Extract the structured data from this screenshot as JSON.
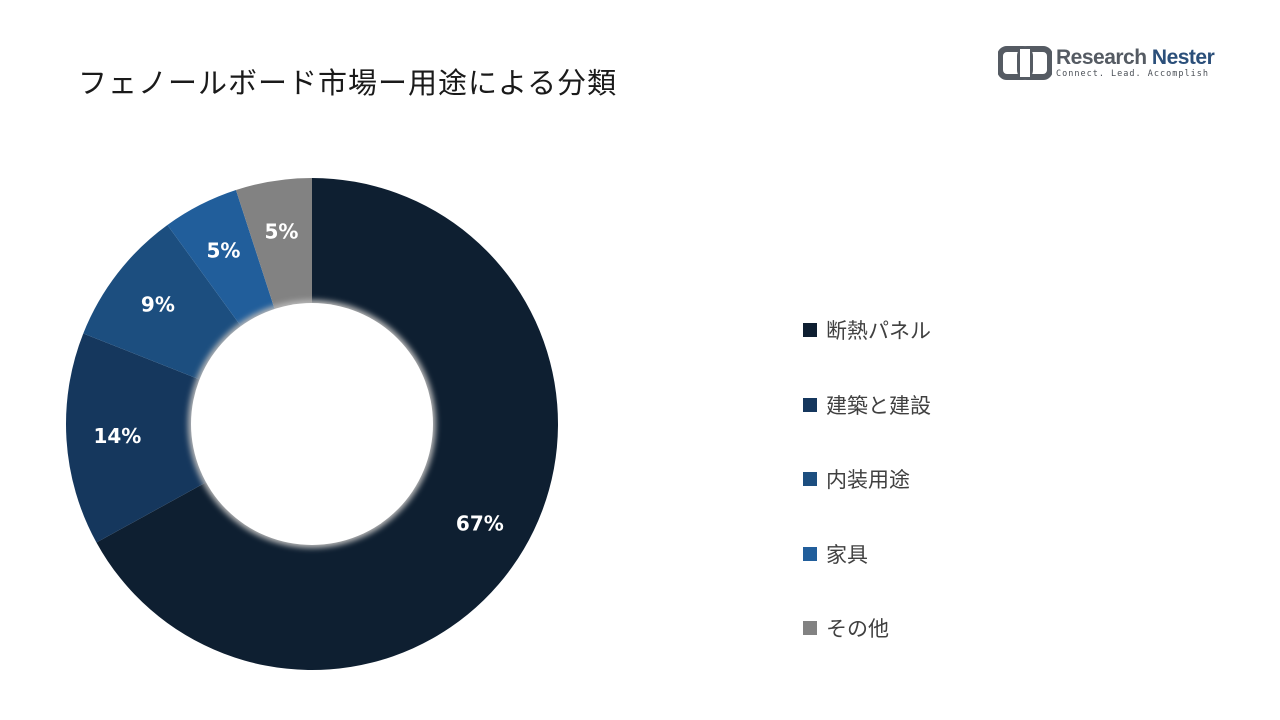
{
  "header": {
    "title": "フェノールボード市場ー用途による分類"
  },
  "logo": {
    "name_part1": "Research",
    "name_part2": "Nester",
    "tagline": "Connect. Lead. Accomplish"
  },
  "chart_data": {
    "type": "donut",
    "categories": [
      "断熱パネル",
      "建築と建設",
      "内装用途",
      "家具",
      "その他"
    ],
    "values": [
      67,
      14,
      9,
      5,
      5
    ],
    "labels": [
      "67%",
      "14%",
      "9%",
      "5%",
      "5%"
    ],
    "colors": [
      "#0e1f31",
      "#15375d",
      "#1c4e7f",
      "#215e9b",
      "#828282"
    ],
    "legend_placement": "right"
  }
}
